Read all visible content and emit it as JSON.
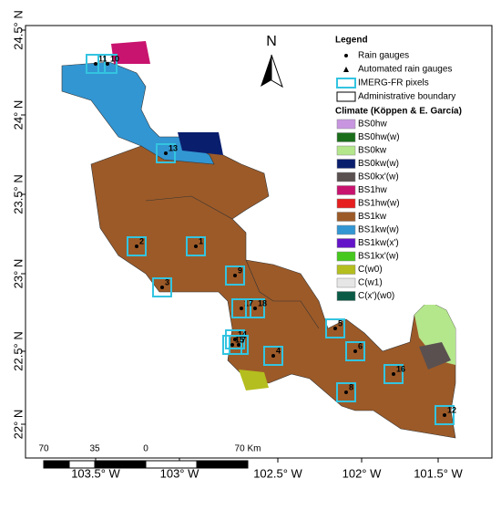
{
  "north": "N",
  "x_axis": {
    "labels": [
      "103.5° W",
      "103° W",
      "102.5° W",
      "102° W",
      "101.5° W"
    ]
  },
  "y_axis": {
    "labels": [
      "24.5° N",
      "24° N",
      "23.5° N",
      "23° N",
      "22.5° N",
      "22° N"
    ]
  },
  "legend": {
    "title": "Legend",
    "symbols": [
      "Rain gauges",
      "Automated rain gauges",
      "IMERG-FR pixels",
      "Administrative boundary"
    ],
    "climate_title": "Climate (Köppen & E. García)",
    "classes": [
      {
        "label": "BS0hw",
        "color": "#c896e0"
      },
      {
        "label": "BS0hw(w)",
        "color": "#1a6e1a"
      },
      {
        "label": "BS0kw",
        "color": "#b4e68c"
      },
      {
        "label": "BS0kw(w)",
        "color": "#0a1e6e"
      },
      {
        "label": "BS0kx'(w)",
        "color": "#5a5050"
      },
      {
        "label": "BS1hw",
        "color": "#c8146e"
      },
      {
        "label": "BS1hw(w)",
        "color": "#e61e1e"
      },
      {
        "label": "BS1kw",
        "color": "#9c5a28"
      },
      {
        "label": "BS1kw(w)",
        "color": "#3296d2"
      },
      {
        "label": "BS1kw(x')",
        "color": "#6414c8"
      },
      {
        "label": "BS1kx'(w)",
        "color": "#46c81e"
      },
      {
        "label": "C(w0)",
        "color": "#b4be1e"
      },
      {
        "label": "C(w1)",
        "color": "#e6e6e6"
      },
      {
        "label": "C(x')(w0)",
        "color": "#0a5a46"
      }
    ]
  },
  "scale_bar": {
    "labels": [
      "70",
      "35",
      "0",
      "70 Km"
    ]
  },
  "stations": [
    "11",
    "10",
    "13",
    "2",
    "1",
    "3",
    "9",
    "17",
    "18",
    "14",
    "15",
    "7",
    "4",
    "5",
    "6",
    "16",
    "8",
    "12"
  ]
}
